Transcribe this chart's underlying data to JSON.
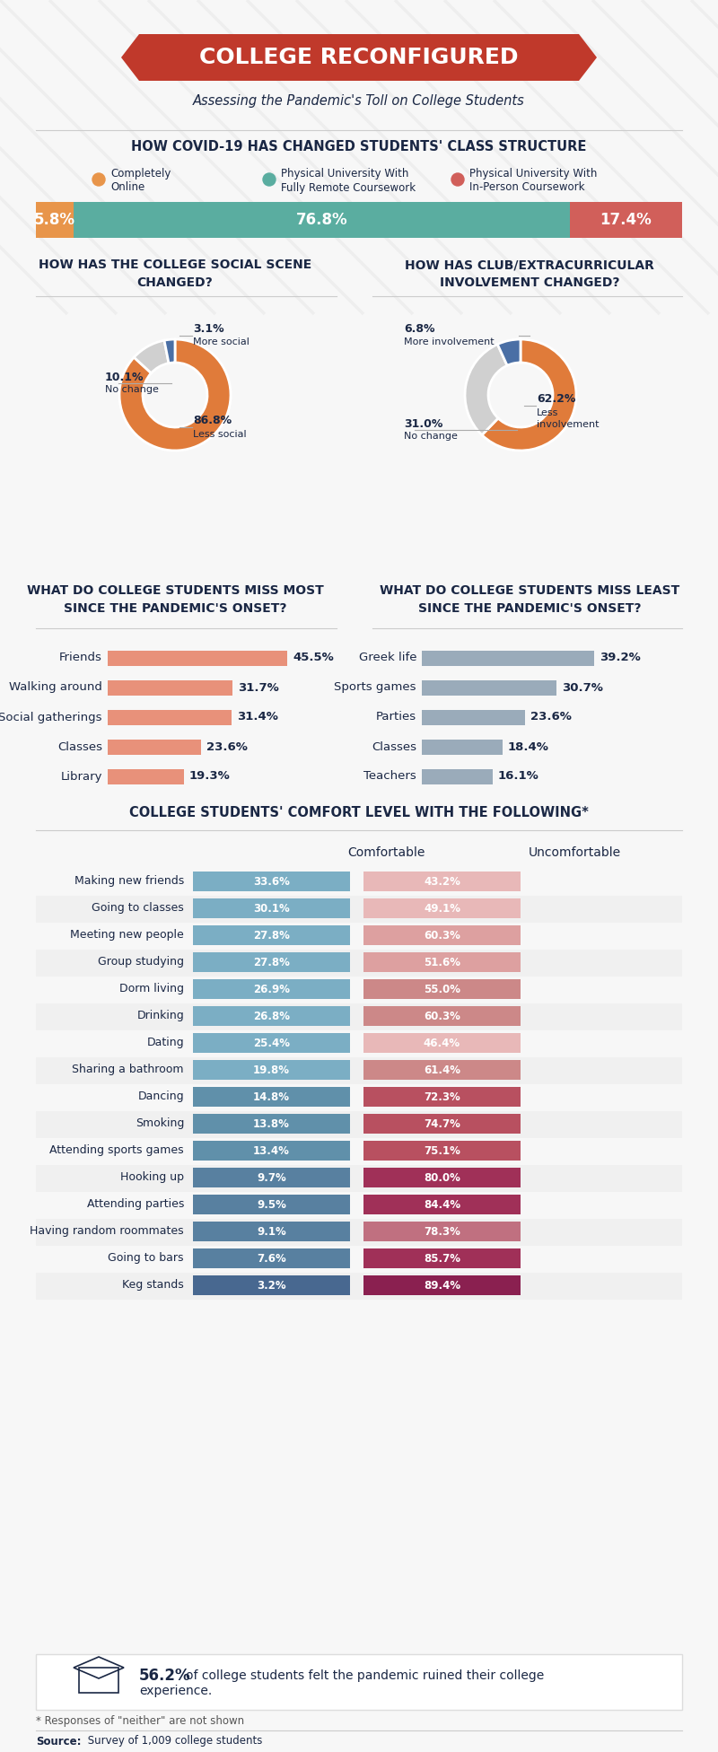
{
  "title": "COLLEGE RECONFIGURED",
  "subtitle": "Assessing the Pandemic's Toll on College Students",
  "bg_color": "#f7f7f7",
  "stripe_color": "#eeeeee",
  "banner_color": "#c0392b",
  "dark_blue": "#1a2744",
  "section1_title": "HOW COVID-19 HAS CHANGED STUDENTS' CLASS STRUCTURE",
  "class_values": [
    5.8,
    76.8,
    17.4
  ],
  "class_labels": [
    "5.8%",
    "76.8%",
    "17.4%"
  ],
  "class_colors": [
    "#e8954a",
    "#5aada0",
    "#d15f5a"
  ],
  "class_legend": [
    "Completely\nOnline",
    "Physical University With\nFully Remote Coursework",
    "Physical University With\nIn-Person Coursework"
  ],
  "class_legend_colors": [
    "#e8954a",
    "#5aada0",
    "#d15f5a"
  ],
  "social_title": "HOW HAS THE COLLEGE SOCIAL SCENE\nCHANGED?",
  "social_values": [
    86.8,
    10.1,
    3.1
  ],
  "social_labels": [
    "Less social",
    "No change",
    "More social"
  ],
  "social_colors": [
    "#e07b3a",
    "#d0d0d0",
    "#4a6fa5"
  ],
  "club_title": "HOW HAS CLUB/EXTRACURRICULAR\nINVOLVEMENT CHANGED?",
  "club_values": [
    62.2,
    31.0,
    6.8
  ],
  "club_labels": [
    "Less\ninvolvement",
    "No change",
    "More involvement"
  ],
  "club_colors": [
    "#e07b3a",
    "#d0d0d0",
    "#4a6fa5"
  ],
  "miss_most_title": "WHAT DO COLLEGE STUDENTS MISS MOST\nSINCE THE PANDEMIC'S ONSET?",
  "miss_most_labels": [
    "Friends",
    "Walking around",
    "Social gatherings",
    "Classes",
    "Library"
  ],
  "miss_most_values": [
    45.5,
    31.7,
    31.4,
    23.6,
    19.3
  ],
  "miss_most_color": "#e8917a",
  "miss_least_title": "WHAT DO COLLEGE STUDENTS MISS LEAST\nSINCE THE PANDEMIC'S ONSET?",
  "miss_least_labels": [
    "Greek life",
    "Sports games",
    "Parties",
    "Classes",
    "Teachers"
  ],
  "miss_least_values": [
    39.2,
    30.7,
    23.6,
    18.4,
    16.1
  ],
  "miss_least_color": "#9aabba",
  "comfort_title": "COLLEGE STUDENTS' COMFORT LEVEL WITH THE FOLLOWING*",
  "comfort_labels": [
    "Making new friends",
    "Going to classes",
    "Meeting new people",
    "Group studying",
    "Dorm living",
    "Drinking",
    "Dating",
    "Sharing a bathroom",
    "Dancing",
    "Smoking",
    "Attending sports games",
    "Hooking up",
    "Attending parties",
    "Having random roommates",
    "Going to bars",
    "Keg stands"
  ],
  "comfortable_values": [
    33.6,
    30.1,
    27.8,
    27.8,
    26.9,
    26.8,
    25.4,
    19.8,
    14.8,
    13.8,
    13.4,
    9.7,
    9.5,
    9.1,
    7.6,
    3.2
  ],
  "uncomfortable_values": [
    43.2,
    49.1,
    60.3,
    51.6,
    55.0,
    60.3,
    46.4,
    61.4,
    72.3,
    74.7,
    75.1,
    80.0,
    84.4,
    78.3,
    85.7,
    89.4
  ],
  "comfortable_colors": [
    "#7fa8c0",
    "#7fa8c0",
    "#7fa8c0",
    "#7fa8c0",
    "#7fa8c0",
    "#7fa8c0",
    "#7fa8c0",
    "#7fa8c0",
    "#6690aa",
    "#6690aa",
    "#6690aa",
    "#6690aa",
    "#6690aa",
    "#6690aa",
    "#6690aa",
    "#4a708e"
  ],
  "uncomfortable_colors": [
    "#e8b0b0",
    "#e8b0b0",
    "#e0a0a0",
    "#e0a0a0",
    "#d88888",
    "#d88888",
    "#e8b0b0",
    "#d88888",
    "#c85a6a",
    "#c85a6a",
    "#c85a6a",
    "#b84060",
    "#b04060",
    "#c87080",
    "#b84060",
    "#a03060"
  ],
  "row_bg_even": "#f0f0f0",
  "row_bg_odd": "#ffffff",
  "footer_pct": "56.2%",
  "footer_text1": "of college students felt the pandemic ruined their college",
  "footer_text2": "experience.",
  "note": "* Responses of \"neither\" are not shown",
  "source_bold": "Source:",
  "source_rest": " Survey of 1,009 college students"
}
